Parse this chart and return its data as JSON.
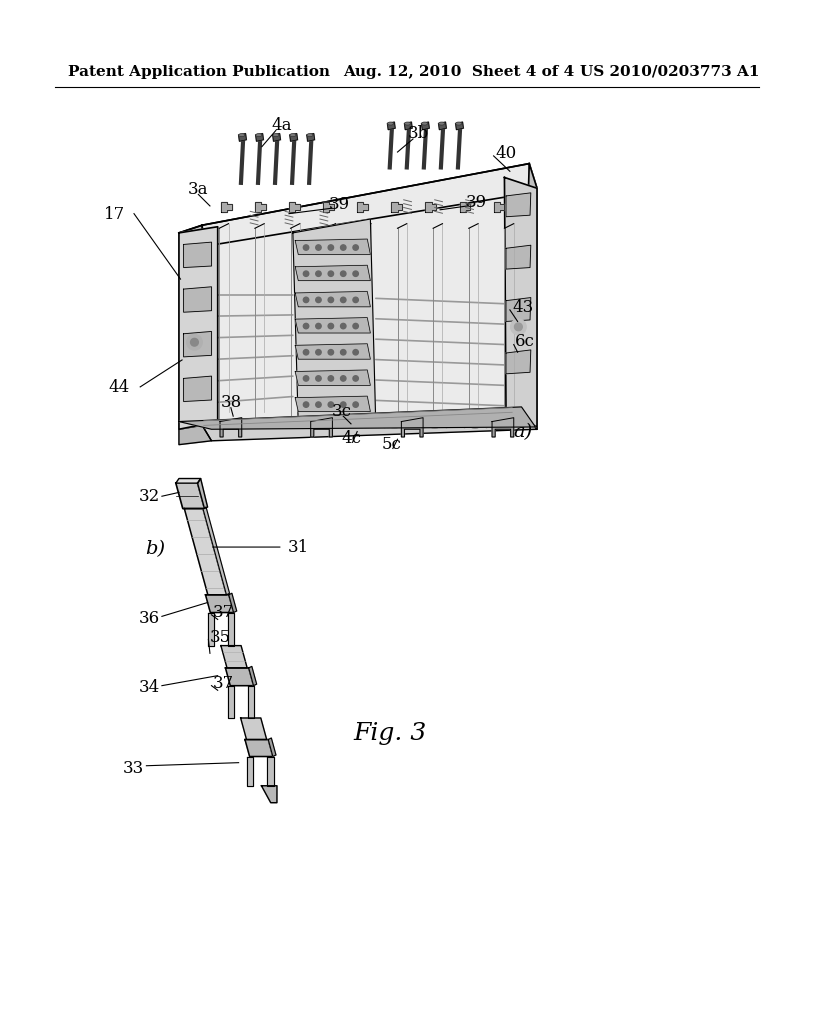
{
  "background_color": "#ffffff",
  "header_left": "Patent Application Publication",
  "header_center": "Aug. 12, 2010  Sheet 4 of 4",
  "header_right": "US 2010/0203773 A1",
  "header_fontsize": 11,
  "fig_width": 1024,
  "fig_height": 1320
}
